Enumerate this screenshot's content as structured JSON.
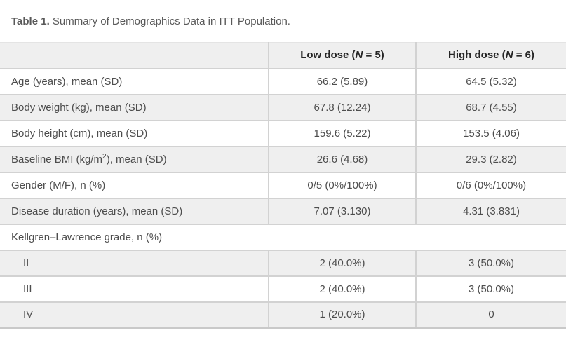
{
  "title": {
    "prefix": "Table 1.",
    "text": " Summary of Demographics Data in ITT Population."
  },
  "table": {
    "header": {
      "empty": "",
      "low": {
        "pre": "Low dose (",
        "n_italic": "N",
        "post": " = 5)"
      },
      "high": {
        "pre": "High dose (",
        "n_italic": "N",
        "post": " = 6)"
      }
    },
    "rows": [
      {
        "label": "Age (years), mean (SD)",
        "low": "66.2 (5.89)",
        "high": "64.5 (5.32)"
      },
      {
        "label": "Body weight (kg), mean (SD)",
        "low": "67.8 (12.24)",
        "high": "68.7 (4.55)"
      },
      {
        "label": "Body height (cm), mean (SD)",
        "low": "159.6 (5.22)",
        "high": "153.5 (4.06)"
      },
      {
        "label_pre": "Baseline BMI (kg/m",
        "label_sup": "2",
        "label_post": "), mean (SD)",
        "low": "26.6 (4.68)",
        "high": "29.3 (2.82)"
      },
      {
        "label": "Gender (M/F), n (%)",
        "low": "0/5 (0%/100%)",
        "high": "0/6 (0%/100%)"
      },
      {
        "label": "Disease duration (years), mean (SD)",
        "low": "7.07 (3.130)",
        "high": "4.31 (3.831)"
      }
    ],
    "section_row": {
      "label": "Kellgren–Lawrence grade, n (%)"
    },
    "sub_rows": [
      {
        "label": "II",
        "low": "2 (40.0%)",
        "high": "3 (50.0%)"
      },
      {
        "label": "III",
        "low": "2 (40.0%)",
        "high": "3 (50.0%)"
      },
      {
        "label": "IV",
        "low": "1 (20.0%)",
        "high": "0"
      }
    ],
    "colors": {
      "stripe_gray": "#efefef",
      "row_border": "#d2d2d2",
      "bottom_bar": "#c9c9c9",
      "body_text": "#4d4d4d",
      "header_text": "#262626",
      "caption_text": "#595959"
    }
  }
}
